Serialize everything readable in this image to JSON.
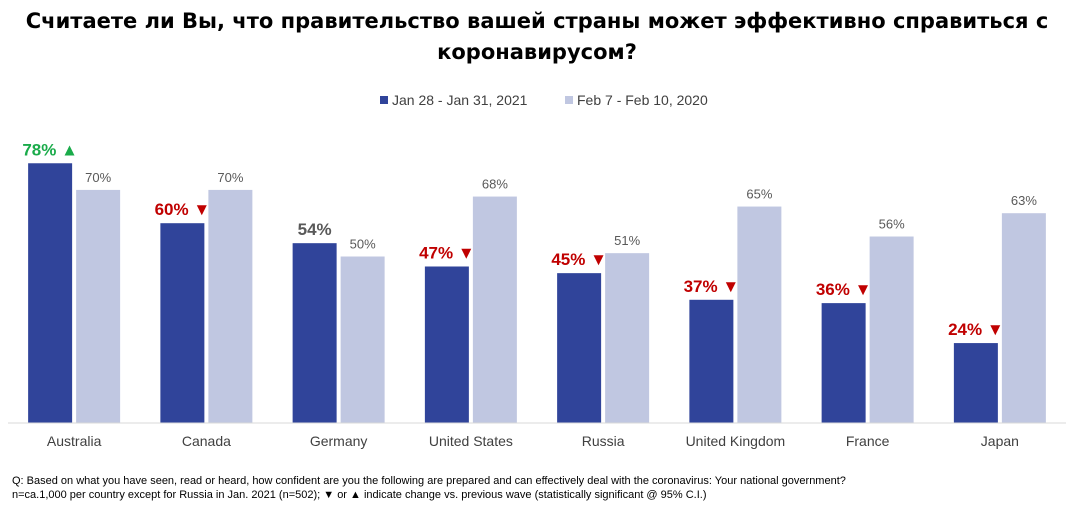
{
  "title": "Считаете ли Вы, что правительство вашей страны может эффективно справиться с коронавирусом?",
  "colors": {
    "current": "#30449a",
    "previous": "#c0c7e1",
    "up": "#1aab4a",
    "down": "#c00000",
    "neutral": "#595959"
  },
  "chart_data": {
    "type": "bar",
    "categories": [
      "Australia",
      "Canada",
      "Germany",
      "United States",
      "Russia",
      "United Kingdom",
      "France",
      "Japan"
    ],
    "series": [
      {
        "name": "Jan 28 - Jan 31, 2021",
        "values": [
          78,
          60,
          54,
          47,
          45,
          37,
          36,
          24
        ],
        "labels": [
          "78%",
          "60%",
          "54%",
          "47%",
          "45%",
          "37%",
          "36%",
          "24%"
        ],
        "change": [
          "up",
          "down",
          "none",
          "down",
          "down",
          "down",
          "down",
          "down"
        ]
      },
      {
        "name": "Feb 7 - Feb 10, 2020",
        "values": [
          70,
          70,
          50,
          68,
          51,
          65,
          56,
          63
        ],
        "labels": [
          "70%",
          "70%",
          "50%",
          "68%",
          "51%",
          "65%",
          "56%",
          "63%"
        ]
      }
    ],
    "ylim": [
      0,
      100
    ],
    "xlabel": "",
    "ylabel": "",
    "grid": false,
    "legend_position": "top-center"
  },
  "footnote": {
    "line1": "Q: Based on what you have seen, read or heard, how confident are you the following are prepared and can effectively deal with the coronavirus: Your national government?",
    "line2": "n=ca.1,000 per country except for Russia in Jan. 2021 (n=502); ▼ or ▲ indicate change vs. previous wave (statistically significant @ 95% C.I.)"
  }
}
